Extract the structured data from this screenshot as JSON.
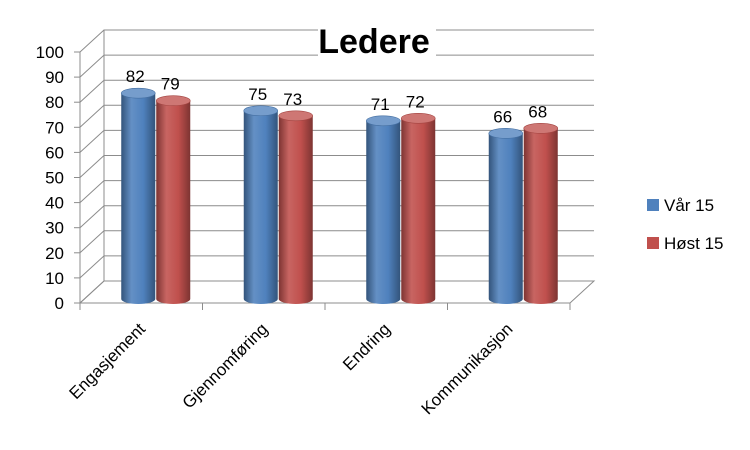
{
  "chart_data": {
    "type": "bar",
    "title": "Ledere",
    "xlabel": "",
    "ylabel": "",
    "ylim": [
      0,
      100
    ],
    "yticks": [
      0,
      10,
      20,
      30,
      40,
      50,
      60,
      70,
      80,
      90,
      100
    ],
    "categories": [
      "Engasjement",
      "Gjennomføring",
      "Endring",
      "Kommunikasjon"
    ],
    "series": [
      {
        "name": "Vår 15",
        "values": [
          82,
          75,
          71,
          66
        ],
        "color": "#4f81bd"
      },
      {
        "name": "Høst 15",
        "values": [
          79,
          73,
          72,
          68
        ],
        "color": "#c0504d"
      }
    ],
    "grid": true,
    "legend_position": "right",
    "style": "3d-cylinder"
  }
}
